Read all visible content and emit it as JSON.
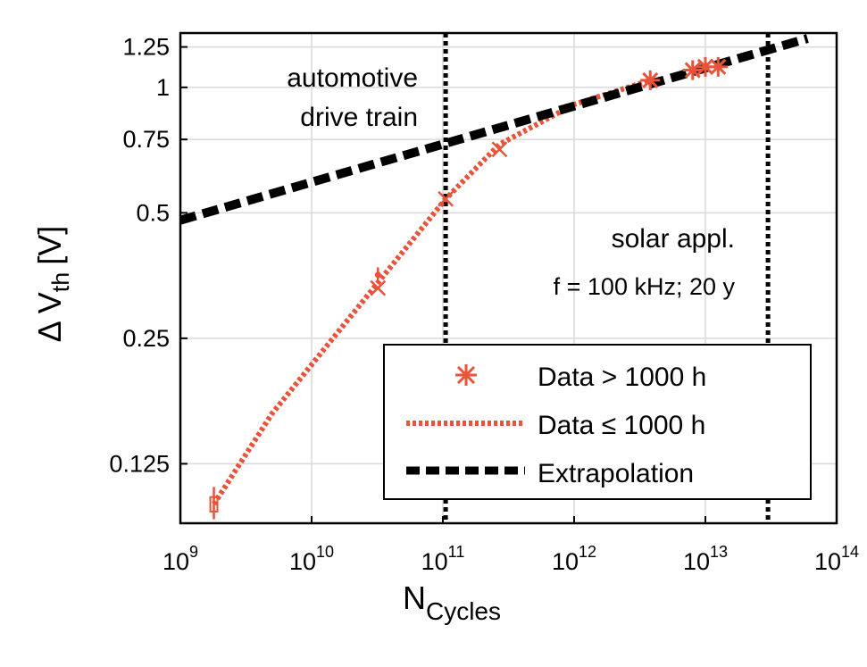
{
  "chart_data": {
    "type": "line",
    "xscale": "log",
    "yscale": "log",
    "xlim": [
      1000000000.0,
      100000000000000.0
    ],
    "ylim": [
      0.09,
      1.35
    ],
    "grid": true,
    "xlabel": {
      "main": "N",
      "sub": "Cycles"
    },
    "ylabel": {
      "main": "Δ V",
      "sub": "th",
      "unit": "[V]"
    },
    "xticks": [
      {
        "value": 1000000000.0,
        "base": "10",
        "exp": "9"
      },
      {
        "value": 10000000000.0,
        "base": "10",
        "exp": "10"
      },
      {
        "value": 100000000000.0,
        "base": "10",
        "exp": "11"
      },
      {
        "value": 1000000000000.0,
        "base": "10",
        "exp": "12"
      },
      {
        "value": 10000000000000.0,
        "base": "10",
        "exp": "13"
      },
      {
        "value": 100000000000000.0,
        "base": "10",
        "exp": "14"
      }
    ],
    "yticks": [
      {
        "value": 0.125,
        "label": "0.125"
      },
      {
        "value": 0.25,
        "label": "0.25"
      },
      {
        "value": 0.5,
        "label": "0.5"
      },
      {
        "value": 0.75,
        "label": "0.75"
      },
      {
        "value": 1,
        "label": "1"
      },
      {
        "value": 1.25,
        "label": "1.25"
      }
    ],
    "colors": {
      "data": "#e8533a",
      "extrapolation": "#000000"
    },
    "series": [
      {
        "name": "Data > 1000 h",
        "style": "asterisk-markers",
        "points": [
          {
            "x": 3800000000000.0,
            "y": 1.04
          },
          {
            "x": 8000000000000.0,
            "y": 1.1
          },
          {
            "x": 10000000000000.0,
            "y": 1.12
          },
          {
            "x": 12500000000000.0,
            "y": 1.12
          }
        ]
      },
      {
        "name": "Data ≤ 1000 h",
        "style": "dotted-line",
        "points": [
          {
            "x": 1800000000.0,
            "y": 0.1
          },
          {
            "x": 5000000000.0,
            "y": 0.165
          },
          {
            "x": 32000000000.0,
            "y": 0.34
          },
          {
            "x": 105000000000.0,
            "y": 0.54
          },
          {
            "x": 270000000000.0,
            "y": 0.73
          },
          {
            "x": 1000000000000.0,
            "y": 0.91
          },
          {
            "x": 3800000000000.0,
            "y": 1.04
          }
        ],
        "x_markers": [
          {
            "x": 32000000000.0,
            "y": 0.33
          },
          {
            "x": 105000000000.0,
            "y": 0.54
          },
          {
            "x": 270000000000.0,
            "y": 0.71
          }
        ],
        "error_bars": [
          {
            "x": 1800000000.0,
            "y": 0.1,
            "low": 0.092,
            "high": 0.11,
            "box": [
              0.096,
              0.104
            ]
          },
          {
            "x": 32000000000.0,
            "y": 0.355,
            "low": 0.345,
            "high": 0.37
          }
        ]
      },
      {
        "name": "Extrapolation",
        "style": "heavy-dashed-line",
        "points": [
          {
            "x": 1000000000.0,
            "y": 0.48
          },
          {
            "x": 60000000000000.0,
            "y": 1.31
          }
        ]
      }
    ],
    "vlines": [
      {
        "x": 105000000000.0,
        "style": "dotted"
      },
      {
        "x": 30000000000000.0,
        "style": "dotted"
      }
    ],
    "annotations": {
      "automotive_line1": "automotive",
      "automotive_line2": "drive train",
      "solar_line1": "solar appl.",
      "solar_line2": "f = 100 kHz; 20 y"
    },
    "legend": {
      "position": "lower-right",
      "entries": [
        "Data > 1000 h",
        "Data ≤ 1000 h",
        "Extrapolation"
      ]
    }
  }
}
